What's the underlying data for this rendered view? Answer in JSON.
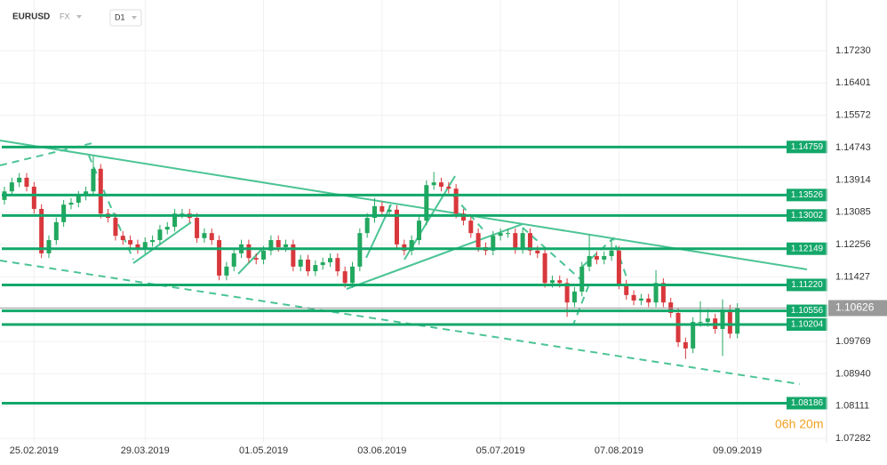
{
  "header": {
    "symbol": "EURUSD",
    "market": "FX",
    "timeframe": "D1",
    "timer": "06h 20m"
  },
  "chart_data": {
    "type": "candlestick",
    "categories": [
      null,
      null,
      null,
      null,
      "25.02.2019",
      null,
      null,
      null,
      null,
      null,
      null,
      null,
      null,
      null,
      null,
      null,
      null,
      null,
      null,
      "29.03.2019",
      null,
      null,
      null,
      null,
      null,
      null,
      null,
      null,
      null,
      null,
      null,
      null,
      null,
      null,
      null,
      "01.05.2019",
      null,
      null,
      null,
      null,
      null,
      null,
      null,
      null,
      null,
      null,
      null,
      null,
      null,
      null,
      null,
      "03.06.2019",
      null,
      null,
      null,
      null,
      null,
      null,
      null,
      null,
      null,
      null,
      null,
      null,
      null,
      null,
      null,
      "05.07.2019",
      null,
      null,
      null,
      null,
      null,
      null,
      null,
      null,
      null,
      null,
      null,
      null,
      null,
      null,
      null,
      "07.08.2019",
      null,
      null,
      null,
      null,
      null,
      null,
      null,
      null,
      null,
      null,
      null,
      null,
      null,
      null,
      null,
      "09.09.2019"
    ],
    "candles": [
      [
        1.134,
        1.1374,
        1.1328,
        1.1362
      ],
      [
        1.1362,
        1.1397,
        1.135,
        1.1385
      ],
      [
        1.1385,
        1.1409,
        1.1373,
        1.1397
      ],
      [
        1.1397,
        1.1409,
        1.1362,
        1.1374
      ],
      [
        1.1374,
        1.1386,
        1.1305,
        1.1317
      ],
      [
        1.1317,
        1.1329,
        1.1191,
        1.1203
      ],
      [
        1.1203,
        1.1249,
        1.1191,
        1.1237
      ],
      [
        1.1237,
        1.1295,
        1.1225,
        1.1283
      ],
      [
        1.1283,
        1.134,
        1.1271,
        1.1328
      ],
      [
        1.1328,
        1.1345,
        1.1316,
        1.1333
      ],
      [
        1.1333,
        1.1363,
        1.1321,
        1.1351
      ],
      [
        1.1351,
        1.1374,
        1.1339,
        1.1362
      ],
      [
        1.1362,
        1.1452,
        1.135,
        1.142
      ],
      [
        1.142,
        1.1432,
        1.1293,
        1.1305
      ],
      [
        1.1305,
        1.1317,
        1.1282,
        1.1294
      ],
      [
        1.1294,
        1.1306,
        1.1236,
        1.1248
      ],
      [
        1.1248,
        1.126,
        1.1225,
        1.1237
      ],
      [
        1.1237,
        1.1249,
        1.1214,
        1.1226
      ],
      [
        1.1226,
        1.1238,
        1.1202,
        1.1214
      ],
      [
        1.1214,
        1.1244,
        1.1202,
        1.1232
      ],
      [
        1.1232,
        1.1249,
        1.122,
        1.1237
      ],
      [
        1.1237,
        1.1276,
        1.1225,
        1.1264
      ],
      [
        1.1264,
        1.1283,
        1.1252,
        1.1271
      ],
      [
        1.1271,
        1.1317,
        1.1259,
        1.1305
      ],
      [
        1.1305,
        1.1317,
        1.1293,
        1.1305
      ],
      [
        1.1305,
        1.1317,
        1.1282,
        1.1294
      ],
      [
        1.1294,
        1.1306,
        1.123,
        1.1242
      ],
      [
        1.1242,
        1.1267,
        1.123,
        1.1255
      ],
      [
        1.1255,
        1.1267,
        1.1225,
        1.1237
      ],
      [
        1.1237,
        1.1249,
        1.1134,
        1.1146
      ],
      [
        1.1146,
        1.1181,
        1.1134,
        1.1169
      ],
      [
        1.1169,
        1.1215,
        1.1157,
        1.1203
      ],
      [
        1.1203,
        1.1238,
        1.1191,
        1.1226
      ],
      [
        1.1226,
        1.1238,
        1.1179,
        1.1191
      ],
      [
        1.1191,
        1.1203,
        1.1175,
        1.1187
      ],
      [
        1.1187,
        1.1222,
        1.1175,
        1.121
      ],
      [
        1.121,
        1.1249,
        1.1198,
        1.1237
      ],
      [
        1.1237,
        1.1249,
        1.1207,
        1.1219
      ],
      [
        1.1219,
        1.1238,
        1.1207,
        1.1226
      ],
      [
        1.1226,
        1.1238,
        1.1157,
        1.1169
      ],
      [
        1.1169,
        1.1199,
        1.1157,
        1.1187
      ],
      [
        1.1187,
        1.1199,
        1.1145,
        1.1157
      ],
      [
        1.1157,
        1.1185,
        1.1145,
        1.1173
      ],
      [
        1.1173,
        1.1192,
        1.1161,
        1.118
      ],
      [
        1.118,
        1.1203,
        1.1168,
        1.1191
      ],
      [
        1.1191,
        1.1203,
        1.1145,
        1.1157
      ],
      [
        1.1157,
        1.1169,
        1.1115,
        1.1127
      ],
      [
        1.1127,
        1.1181,
        1.1115,
        1.1169
      ],
      [
        1.1169,
        1.1267,
        1.1157,
        1.1255
      ],
      [
        1.1255,
        1.1306,
        1.1243,
        1.1294
      ],
      [
        1.1294,
        1.1345,
        1.1282,
        1.1324
      ],
      [
        1.1324,
        1.1336,
        1.1298,
        1.131
      ],
      [
        1.131,
        1.1327,
        1.1298,
        1.1315
      ],
      [
        1.1315,
        1.1327,
        1.1214,
        1.1226
      ],
      [
        1.1226,
        1.1238,
        1.1198,
        1.121
      ],
      [
        1.121,
        1.1249,
        1.1198,
        1.1237
      ],
      [
        1.1237,
        1.1299,
        1.1225,
        1.1287
      ],
      [
        1.1287,
        1.139,
        1.1275,
        1.1378
      ],
      [
        1.1378,
        1.1412,
        1.1366,
        1.1385
      ],
      [
        1.1385,
        1.1397,
        1.1362,
        1.1374
      ],
      [
        1.1374,
        1.1386,
        1.1357,
        1.1369
      ],
      [
        1.1369,
        1.1381,
        1.1293,
        1.1305
      ],
      [
        1.1305,
        1.1317,
        1.1275,
        1.1287
      ],
      [
        1.1287,
        1.1299,
        1.1243,
        1.1255
      ],
      [
        1.1255,
        1.1267,
        1.1207,
        1.1219
      ],
      [
        1.1219,
        1.1231,
        1.1198,
        1.121
      ],
      [
        1.121,
        1.126,
        1.1198,
        1.1248
      ],
      [
        1.1248,
        1.1267,
        1.1236,
        1.1255
      ],
      [
        1.1255,
        1.1267,
        1.1243,
        1.1255
      ],
      [
        1.1255,
        1.1267,
        1.1202,
        1.1214
      ],
      [
        1.1214,
        1.1267,
        1.1202,
        1.1255
      ],
      [
        1.1255,
        1.1267,
        1.1198,
        1.121
      ],
      [
        1.121,
        1.1222,
        1.1191,
        1.1203
      ],
      [
        1.1203,
        1.1215,
        1.1115,
        1.1127
      ],
      [
        1.1127,
        1.1146,
        1.1115,
        1.1134
      ],
      [
        1.1134,
        1.1146,
        1.1115,
        1.1127
      ],
      [
        1.1127,
        1.1139,
        1.104,
        1.1077
      ],
      [
        1.1077,
        1.1117,
        1.1065,
        1.1105
      ],
      [
        1.1105,
        1.1181,
        1.1093,
        1.1169
      ],
      [
        1.1169,
        1.125,
        1.1157,
        1.1196
      ],
      [
        1.1196,
        1.1208,
        1.1175,
        1.1187
      ],
      [
        1.1187,
        1.1208,
        1.1175,
        1.1196
      ],
      [
        1.1196,
        1.124,
        1.1184,
        1.121
      ],
      [
        1.121,
        1.1222,
        1.1111,
        1.1123
      ],
      [
        1.1123,
        1.1135,
        1.1084,
        1.1096
      ],
      [
        1.1096,
        1.1108,
        1.107,
        1.1082
      ],
      [
        1.1082,
        1.1099,
        1.107,
        1.1087
      ],
      [
        1.1087,
        1.1099,
        1.1065,
        1.1077
      ],
      [
        1.1077,
        1.116,
        1.1065,
        1.1127
      ],
      [
        1.1127,
        1.1139,
        1.1065,
        1.1077
      ],
      [
        1.1077,
        1.1089,
        1.1038,
        1.105
      ],
      [
        1.105,
        1.1062,
        1.0963,
        1.0975
      ],
      [
        1.0975,
        1.0987,
        1.0932,
        1.0959
      ],
      [
        1.0959,
        1.1039,
        1.0947,
        1.1027
      ],
      [
        1.1027,
        1.108,
        1.1015,
        1.1027
      ],
      [
        1.1027,
        1.106,
        1.1015,
        1.1036
      ],
      [
        1.1036,
        1.1048,
        1.0997,
        1.1009
      ],
      [
        1.1009,
        1.1085,
        1.094,
        1.1059
      ],
      [
        1.1059,
        1.1071,
        1.0985,
        1.0997
      ],
      [
        1.0997,
        1.1075,
        1.0985,
        1.1063
      ]
    ],
    "up_color": "#22a85f",
    "down_color": "#d8383c",
    "ylim": [
      1.0717,
      1.1853
    ],
    "yticks": [
      {
        "value": 1.1723,
        "label": "1.17230"
      },
      1.16401,
      1.15572,
      1.14743,
      1.13914,
      1.13085,
      1.12256,
      1.11427,
      1.09769,
      {
        "value": 1.0894,
        "label": "1.08940"
      },
      1.08111,
      1.07282
    ],
    "grid": true,
    "levels": [
      1.14759,
      1.13526,
      1.13002,
      1.12149,
      {
        "value": 1.1122,
        "label": "1.11220"
      },
      1.10556,
      1.10204,
      1.08186
    ],
    "level_color": "#13a76a",
    "current_price": 1.10626
  }
}
